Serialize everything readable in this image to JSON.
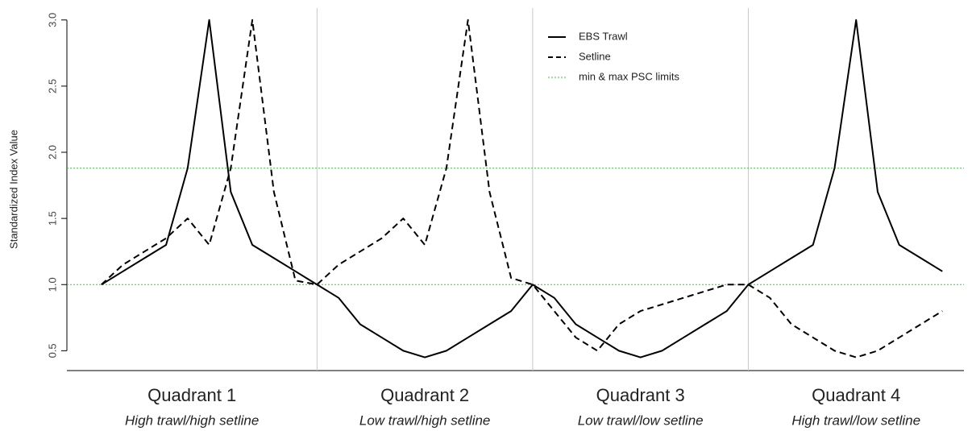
{
  "chart_data": {
    "type": "line",
    "y_label": "Standardized Index Value",
    "x": [
      1,
      2,
      3,
      4,
      5,
      6,
      7,
      8,
      9,
      10,
      11,
      12,
      13,
      14,
      15,
      16,
      17,
      18,
      19,
      20,
      21,
      22,
      23,
      24,
      25,
      26,
      27,
      28,
      29,
      30,
      31,
      32,
      33,
      34,
      35,
      36,
      37,
      38,
      39,
      40
    ],
    "xlim": [
      -0.6,
      41
    ],
    "ylim": [
      0.35,
      3.09
    ],
    "yticks": [
      {
        "value": 0.5,
        "label": "0.5"
      },
      {
        "value": 1,
        "label": "1.0"
      },
      {
        "value": 1.5,
        "label": "1.5"
      },
      {
        "value": 2,
        "label": "2.0"
      },
      {
        "value": 2.5,
        "label": "2.5"
      },
      {
        "value": 3,
        "label": "3.0"
      }
    ],
    "series": [
      {
        "name": "EBS Trawl",
        "color": "#000000",
        "dash": "solid",
        "values": [
          1.0,
          1.1,
          1.2,
          1.3,
          1.88,
          3.0,
          1.7,
          1.3,
          1.2,
          1.1,
          1.0,
          0.9,
          0.7,
          0.6,
          0.5,
          0.45,
          0.5,
          0.6,
          0.7,
          0.8,
          1.0,
          0.9,
          0.7,
          0.6,
          0.5,
          0.45,
          0.5,
          0.6,
          0.7,
          0.8,
          1.0,
          1.1,
          1.2,
          1.3,
          1.88,
          3.0,
          1.7,
          1.3,
          1.2,
          1.1
        ]
      },
      {
        "name": "Setline",
        "color": "#000000",
        "dash": "dashed",
        "values": [
          1.0,
          1.15,
          1.25,
          1.35,
          1.5,
          1.3,
          1.88,
          3.0,
          1.7,
          1.03,
          1.0,
          1.15,
          1.25,
          1.35,
          1.5,
          1.3,
          1.88,
          3.0,
          1.7,
          1.05,
          1.0,
          0.8,
          0.6,
          0.5,
          0.7,
          0.8,
          0.85,
          0.9,
          0.95,
          1.0,
          1.0,
          0.9,
          0.7,
          0.6,
          0.5,
          0.45,
          0.5,
          0.6,
          0.7,
          0.8
        ]
      }
    ],
    "reference_lines": {
      "name": "min & max PSC limits",
      "color": "#33cc33",
      "values": [
        1.0,
        1.88
      ]
    },
    "dividers": {
      "color": "#c8c8c8",
      "values": [
        11,
        21,
        31
      ]
    },
    "quadrants": [
      {
        "label": "Quadrant 1",
        "subtitle": "High trawl/high setline"
      },
      {
        "label": "Quadrant 2",
        "subtitle": "Low trawl/high setline"
      },
      {
        "label": "Quadrant 3",
        "subtitle": "Low trawl/low setline"
      },
      {
        "label": "Quadrant 4",
        "subtitle": "High trawl/low setline"
      }
    ]
  }
}
